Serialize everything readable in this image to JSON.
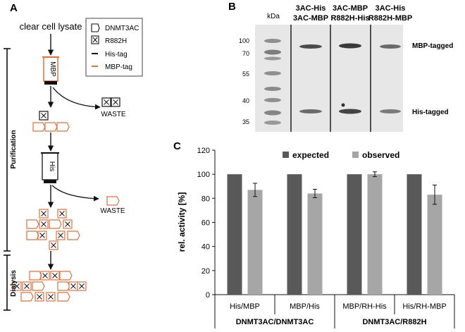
{
  "panels": {
    "a": "A",
    "b": "B",
    "c": "C"
  },
  "schema": {
    "top_label": "clear cell lysate",
    "legend": [
      {
        "symbol": "hexagon",
        "label": "DNMT3AC"
      },
      {
        "symbol": "boxed-x",
        "label": "R882H"
      },
      {
        "symbol": "black-line",
        "label": "His-tag"
      },
      {
        "symbol": "orange-line",
        "label": "MBP-tag"
      }
    ],
    "column1_label": "MBP",
    "column2_label": "His",
    "waste_label": "WASTE",
    "phase_purification": "Purification",
    "phase_dialysis": "Dialysis",
    "colors": {
      "mbp": "#e2713a",
      "his": "#111111"
    }
  },
  "gel": {
    "kda_label": "kDa",
    "markers": [
      "100",
      "70",
      "55",
      "40",
      "35"
    ],
    "lanes": [
      {
        "line1": "3AC-His",
        "line2": "3AC-MBP"
      },
      {
        "line1": "3AC-MBP",
        "line2": "R882H-His"
      },
      {
        "line1": "3AC-His",
        "line2": "R882H-MBP"
      }
    ],
    "band_labels": {
      "upper": "MBP-tagged",
      "lower": "His-tagged"
    }
  },
  "chart_data": {
    "type": "bar",
    "ylabel": "rel. activity [%]",
    "xlabel": "",
    "ylim": [
      0,
      120
    ],
    "yticks": [
      "0",
      "20",
      "40",
      "60",
      "80",
      "100",
      "120"
    ],
    "categories": [
      "His/MBP",
      "MBP/His",
      "MBP/RH-His",
      "His/RH-MBP"
    ],
    "groups": [
      {
        "label": "DNMT3AC/DNMT3AC",
        "span": [
          0,
          1
        ]
      },
      {
        "label": "DNMT3AC/R882H",
        "span": [
          2,
          3
        ]
      }
    ],
    "legend_position": "top-center",
    "series": [
      {
        "name": "expected",
        "color": "#595959",
        "values": [
          100,
          100,
          100,
          100
        ],
        "errors": [
          0,
          0,
          0,
          0
        ]
      },
      {
        "name": "observed",
        "color": "#a6a6a6",
        "values": [
          87,
          84,
          100,
          83
        ],
        "errors": [
          5.5,
          3.5,
          2,
          8
        ]
      }
    ]
  }
}
